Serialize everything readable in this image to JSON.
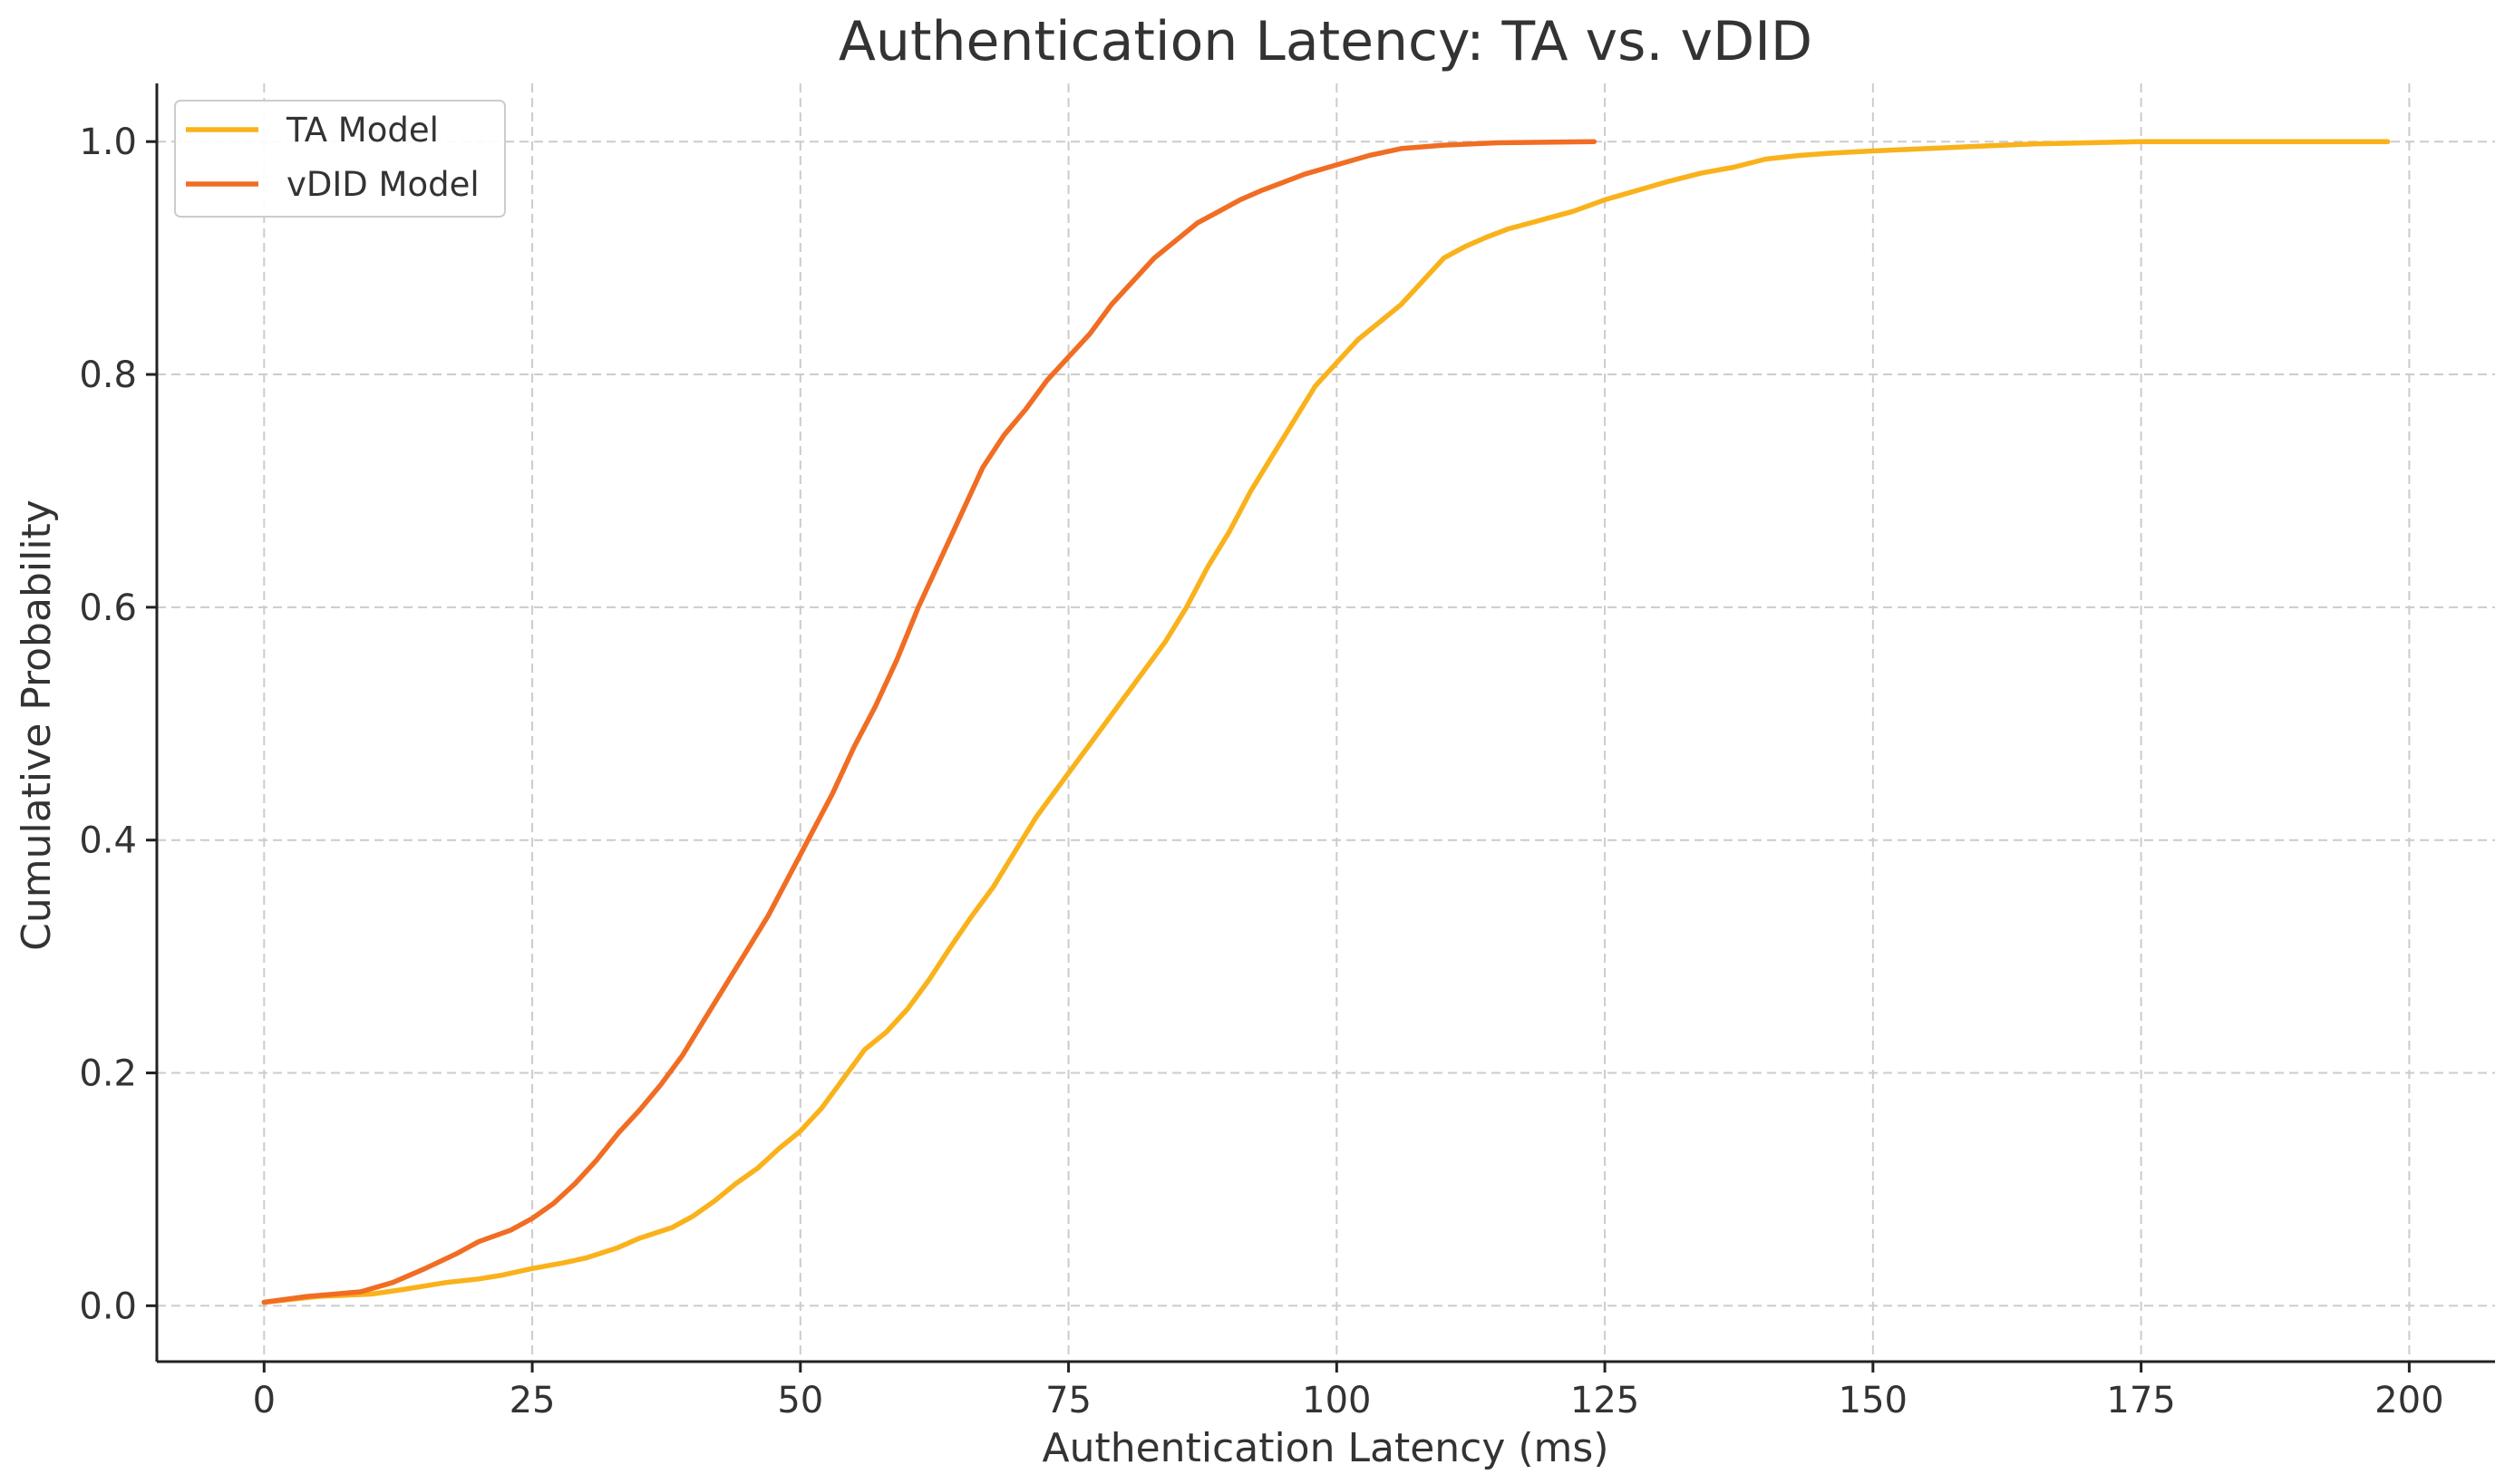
{
  "chart_data": {
    "type": "line",
    "title": "Authentication Latency: TA vs. vDID",
    "xlabel": "Authentication Latency (ms)",
    "ylabel": "Cumulative Probability",
    "xlim": [
      -10,
      208
    ],
    "ylim": [
      -0.048,
      1.05
    ],
    "xticks": [
      0,
      25,
      50,
      75,
      100,
      125,
      150,
      175,
      200
    ],
    "xtick_labels": [
      "0",
      "25",
      "50",
      "75",
      "100",
      "125",
      "150",
      "175",
      "200"
    ],
    "yticks": [
      0.0,
      0.2,
      0.4,
      0.6,
      0.8,
      1.0
    ],
    "ytick_labels": [
      "0.0",
      "0.2",
      "0.4",
      "0.6",
      "0.8",
      "1.0"
    ],
    "grid": true,
    "legend_position": "top-left",
    "series": [
      {
        "name": "TA Model",
        "color": "#f9b21b",
        "points": [
          [
            0,
            0.003
          ],
          [
            5,
            0.008
          ],
          [
            10,
            0.01
          ],
          [
            13,
            0.014
          ],
          [
            17,
            0.02
          ],
          [
            20,
            0.023
          ],
          [
            22,
            0.026
          ],
          [
            25,
            0.032
          ],
          [
            28,
            0.037
          ],
          [
            30,
            0.041
          ],
          [
            33,
            0.05
          ],
          [
            35,
            0.058
          ],
          [
            38,
            0.067
          ],
          [
            40,
            0.077
          ],
          [
            42,
            0.09
          ],
          [
            44,
            0.105
          ],
          [
            46,
            0.118
          ],
          [
            48,
            0.135
          ],
          [
            50,
            0.15
          ],
          [
            52,
            0.17
          ],
          [
            54,
            0.195
          ],
          [
            56,
            0.22
          ],
          [
            58,
            0.235
          ],
          [
            60,
            0.255
          ],
          [
            62,
            0.28
          ],
          [
            64,
            0.308
          ],
          [
            66,
            0.335
          ],
          [
            68,
            0.36
          ],
          [
            70,
            0.39
          ],
          [
            72,
            0.42
          ],
          [
            74,
            0.445
          ],
          [
            76,
            0.47
          ],
          [
            78,
            0.495
          ],
          [
            80,
            0.52
          ],
          [
            82,
            0.545
          ],
          [
            84,
            0.57
          ],
          [
            86,
            0.6
          ],
          [
            88,
            0.635
          ],
          [
            90,
            0.665
          ],
          [
            92,
            0.7
          ],
          [
            94,
            0.73
          ],
          [
            96,
            0.76
          ],
          [
            98,
            0.79
          ],
          [
            100,
            0.81
          ],
          [
            102,
            0.83
          ],
          [
            104,
            0.845
          ],
          [
            106,
            0.86
          ],
          [
            108,
            0.88
          ],
          [
            110,
            0.9
          ],
          [
            112,
            0.91
          ],
          [
            114,
            0.918
          ],
          [
            116,
            0.925
          ],
          [
            118,
            0.93
          ],
          [
            120,
            0.935
          ],
          [
            122,
            0.94
          ],
          [
            125,
            0.95
          ],
          [
            128,
            0.958
          ],
          [
            131,
            0.966
          ],
          [
            134,
            0.973
          ],
          [
            137,
            0.978
          ],
          [
            140,
            0.985
          ],
          [
            143,
            0.988
          ],
          [
            146,
            0.99
          ],
          [
            150,
            0.992
          ],
          [
            155,
            0.994
          ],
          [
            160,
            0.996
          ],
          [
            165,
            0.998
          ],
          [
            170,
            0.999
          ],
          [
            175,
            1.0
          ],
          [
            198,
            1.0
          ]
        ]
      },
      {
        "name": "vDID Model",
        "color": "#f06d23",
        "points": [
          [
            0,
            0.003
          ],
          [
            4,
            0.008
          ],
          [
            9,
            0.012
          ],
          [
            12,
            0.02
          ],
          [
            15,
            0.032
          ],
          [
            18,
            0.045
          ],
          [
            20,
            0.055
          ],
          [
            23,
            0.065
          ],
          [
            25,
            0.075
          ],
          [
            27,
            0.088
          ],
          [
            29,
            0.105
          ],
          [
            31,
            0.125
          ],
          [
            33,
            0.148
          ],
          [
            35,
            0.168
          ],
          [
            37,
            0.19
          ],
          [
            39,
            0.215
          ],
          [
            41,
            0.245
          ],
          [
            43,
            0.275
          ],
          [
            45,
            0.305
          ],
          [
            47,
            0.335
          ],
          [
            49,
            0.37
          ],
          [
            51,
            0.405
          ],
          [
            53,
            0.44
          ],
          [
            55,
            0.48
          ],
          [
            57,
            0.515
          ],
          [
            59,
            0.555
          ],
          [
            61,
            0.6
          ],
          [
            63,
            0.64
          ],
          [
            65,
            0.68
          ],
          [
            67,
            0.72
          ],
          [
            69,
            0.748
          ],
          [
            71,
            0.77
          ],
          [
            73,
            0.795
          ],
          [
            75,
            0.815
          ],
          [
            77,
            0.835
          ],
          [
            79,
            0.86
          ],
          [
            81,
            0.88
          ],
          [
            83,
            0.9
          ],
          [
            85,
            0.915
          ],
          [
            87,
            0.93
          ],
          [
            89,
            0.94
          ],
          [
            91,
            0.95
          ],
          [
            93,
            0.958
          ],
          [
            95,
            0.965
          ],
          [
            97,
            0.972
          ],
          [
            100,
            0.98
          ],
          [
            103,
            0.988
          ],
          [
            106,
            0.994
          ],
          [
            110,
            0.997
          ],
          [
            115,
            0.999
          ],
          [
            124,
            1.0
          ]
        ]
      }
    ]
  }
}
